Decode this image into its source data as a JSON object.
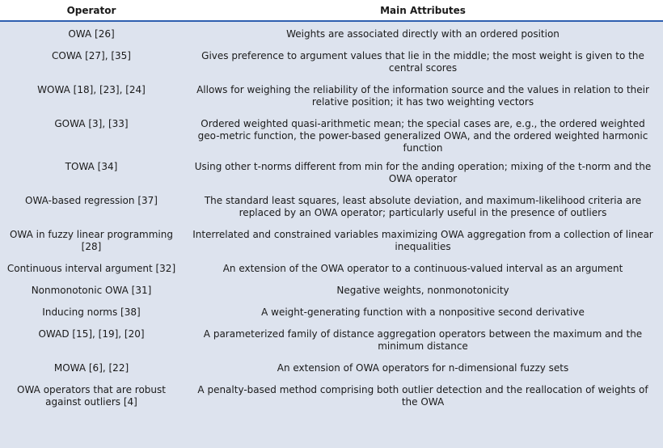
{
  "header": {
    "operator": "Operator",
    "attributes": "Main Attributes"
  },
  "rows": [
    {
      "operator": "OWA [26]",
      "attributes": "Weights are associated directly with an ordered position"
    },
    {
      "operator": "COWA [27], [35]",
      "attributes": "Gives preference to argument values that lie in the middle; the most weight is given to the central scores"
    },
    {
      "operator": "WOWA [18], [23], [24]",
      "attributes": "Allows for weighing the reliability of the information source and the values in relation to their relative position; it has two weighting vectors"
    },
    {
      "operator": "GOWA [3], [33]",
      "attributes": "Ordered weighted quasi-arithmetic mean; the special cases are, e.g., the ordered weighted geo-metric function, the power-based generalized OWA, and the ordered weighted harmonic function"
    },
    {
      "operator": "TOWA [34]",
      "attributes": "Using other t-norms different from min for the anding operation; mixing of the t-norm and the OWA operator"
    },
    {
      "operator": "OWA-based regression [37]",
      "attributes": "The standard least squares, least absolute deviation, and maximum-likelihood criteria are replaced by an OWA operator; particularly useful in the presence of outliers"
    },
    {
      "operator": "OWA in fuzzy linear programming [28]",
      "attributes": "Interrelated and constrained variables maximizing OWA aggregation from a collection of linear inequalities"
    },
    {
      "operator": "Continuous interval argument [32]",
      "attributes": "An extension of the OWA operator to a continuous-valued interval as an argument"
    },
    {
      "operator": "Nonmonotonic OWA [31]",
      "attributes": "Negative weights, nonmonotonicity"
    },
    {
      "operator": "Inducing norms [38]",
      "attributes": "A weight-generating function with a nonpositive second derivative"
    },
    {
      "operator": "OWAD [15], [19], [20]",
      "attributes": "A parameterized family of distance aggregation operators between the maximum and the minimum distance"
    },
    {
      "operator": "MOWA [6], [22]",
      "attributes": "An extension of OWA operators for n-dimensional fuzzy sets"
    },
    {
      "operator": "OWA operators that are robust against outliers [4]",
      "attributes": "A penalty-based method comprising both outlier detection and the reallocation of weights of the OWA"
    }
  ]
}
